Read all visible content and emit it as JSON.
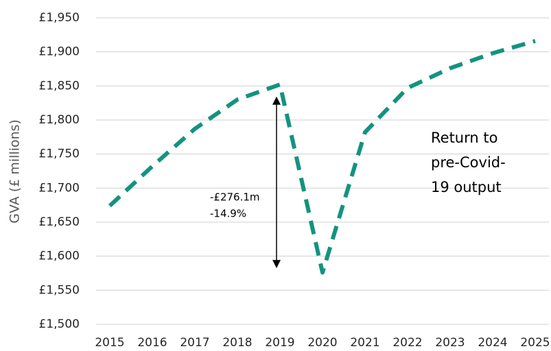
{
  "chart_data": {
    "type": "line",
    "y_label": "GVA (£ millions)",
    "categories": [
      "2015",
      "2016",
      "2017",
      "2018",
      "2019",
      "2020",
      "2021",
      "2022",
      "2023",
      "2024",
      "2025"
    ],
    "series": [
      {
        "name": "GVA",
        "color": "#13937f",
        "values": [
          1674,
          1732,
          1787,
          1830,
          1852,
          1576,
          1782,
          1847,
          1876,
          1898,
          1916
        ]
      }
    ],
    "ylim": [
      1500,
      1950
    ],
    "yticks": [
      {
        "value": 1500,
        "label": "£1,500"
      },
      {
        "value": 1550,
        "label": "£1,550"
      },
      {
        "value": 1600,
        "label": "£1,600"
      },
      {
        "value": 1650,
        "label": "£1,650"
      },
      {
        "value": 1700,
        "label": "£1,700"
      },
      {
        "value": 1750,
        "label": "£1,750"
      },
      {
        "value": 1800,
        "label": "£1,800"
      },
      {
        "value": 1850,
        "label": "£1,850"
      },
      {
        "value": 1900,
        "label": "£1,900"
      },
      {
        "value": 1950,
        "label": "£1,950"
      }
    ],
    "grid": true,
    "annotations": [
      {
        "lines": [
          "-£276.1m",
          "-14.9%"
        ]
      },
      {
        "lines": [
          "Return to",
          "pre-Covid-",
          "19 output"
        ]
      }
    ]
  }
}
